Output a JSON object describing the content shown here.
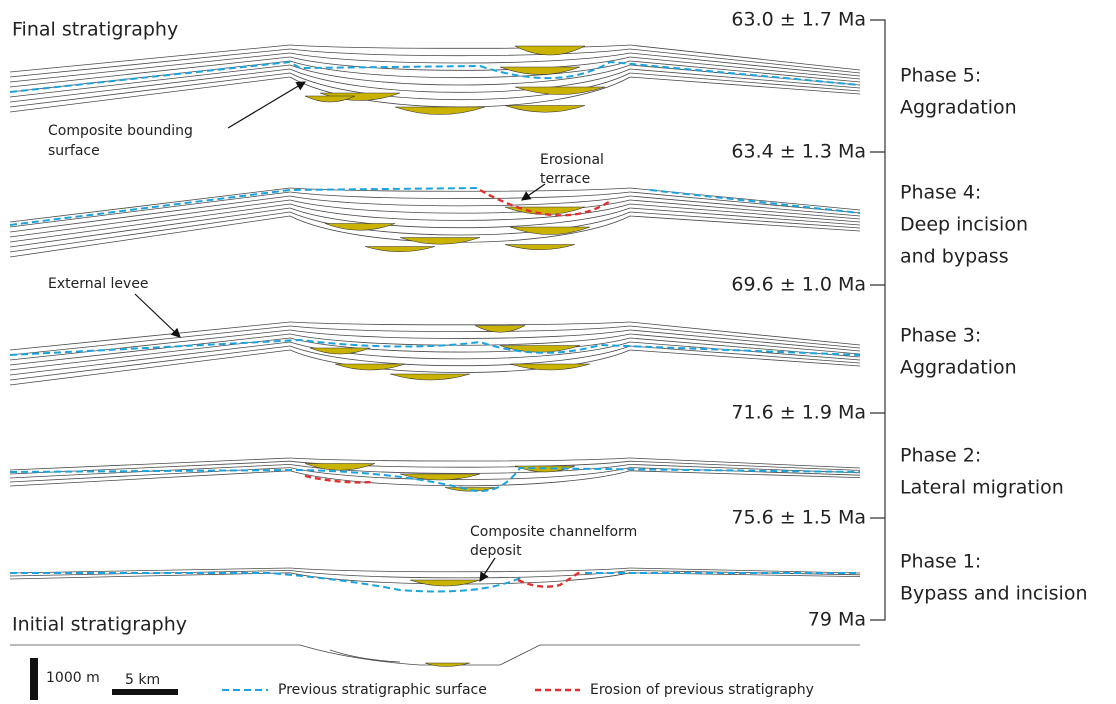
{
  "headings": {
    "final": "Final stratigraphy",
    "initial": "Initial stratigraphy"
  },
  "ages": [
    "63.0 ± 1.7 Ma",
    "63.4 ± 1.3 Ma",
    "69.6 ± 1.0 Ma",
    "71.6 ± 1.9 Ma",
    "75.6 ± 1.5 Ma",
    "79 Ma"
  ],
  "phases": [
    {
      "name": "Phase 5:",
      "lines": [
        "Aggradation"
      ]
    },
    {
      "name": "Phase 4:",
      "lines": [
        "Deep incision",
        "and bypass"
      ]
    },
    {
      "name": "Phase 3:",
      "lines": [
        "Aggradation"
      ]
    },
    {
      "name": "Phase 2:",
      "lines": [
        "Lateral migration"
      ]
    },
    {
      "name": "Phase 1:",
      "lines": [
        "Bypass and incision"
      ]
    }
  ],
  "annotations": {
    "bounding_surface": [
      "Composite bounding",
      "surface"
    ],
    "terrace": [
      "Erosional",
      "terrace"
    ],
    "levee": [
      "External levee"
    ],
    "channelform": [
      "Composite channelform",
      "deposit"
    ]
  },
  "scale": {
    "vertical": "1000 m",
    "horizontal": "5 km"
  },
  "legend": {
    "previous": "Previous stratigraphic surface",
    "erosion": "Erosion of previous stratigraphy"
  }
}
